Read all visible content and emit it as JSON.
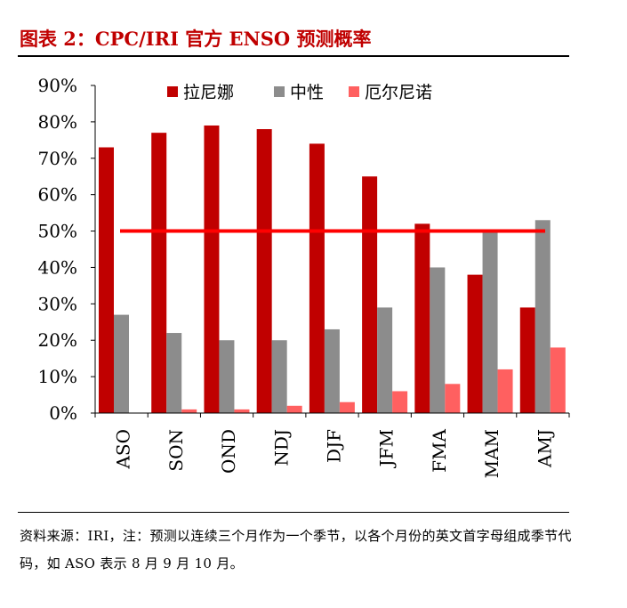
{
  "title": "图表 2：CPC/IRI 官方 ENSO 预测概率",
  "source_note": "资料来源：IRI，注：预测以连续三个月作为一个季节，以各个月份的英文首字母组成季节代码，如 ASO 表示 8 月 9 月 10 月。",
  "colors": {
    "title": "#c00000",
    "el_nino": "#c00000",
    "neutral": "#8c8c8c",
    "la_nina": "#ff6060",
    "threshold": "#ff0000"
  },
  "chart_data": {
    "type": "bar",
    "categories": [
      "ASO",
      "SON",
      "OND",
      "NDJ",
      "DJF",
      "JFM",
      "FMA",
      "MAM",
      "AMJ"
    ],
    "series": [
      {
        "name": "拉尼娜",
        "color": "#c00000",
        "values": [
          73,
          77,
          79,
          78,
          74,
          65,
          52,
          38,
          29
        ]
      },
      {
        "name": "中性",
        "color": "#8c8c8c",
        "values": [
          27,
          22,
          20,
          20,
          23,
          29,
          40,
          50,
          53
        ]
      },
      {
        "name": "厄尔尼诺",
        "color": "#ff6060",
        "values": [
          0,
          1,
          1,
          2,
          3,
          6,
          8,
          12,
          18
        ]
      }
    ],
    "reference_line": 50,
    "ylim": [
      0,
      90
    ],
    "yticks": [
      "0%",
      "10%",
      "20%",
      "30%",
      "40%",
      "50%",
      "60%",
      "70%",
      "80%",
      "90%"
    ],
    "legend_position": "top"
  }
}
